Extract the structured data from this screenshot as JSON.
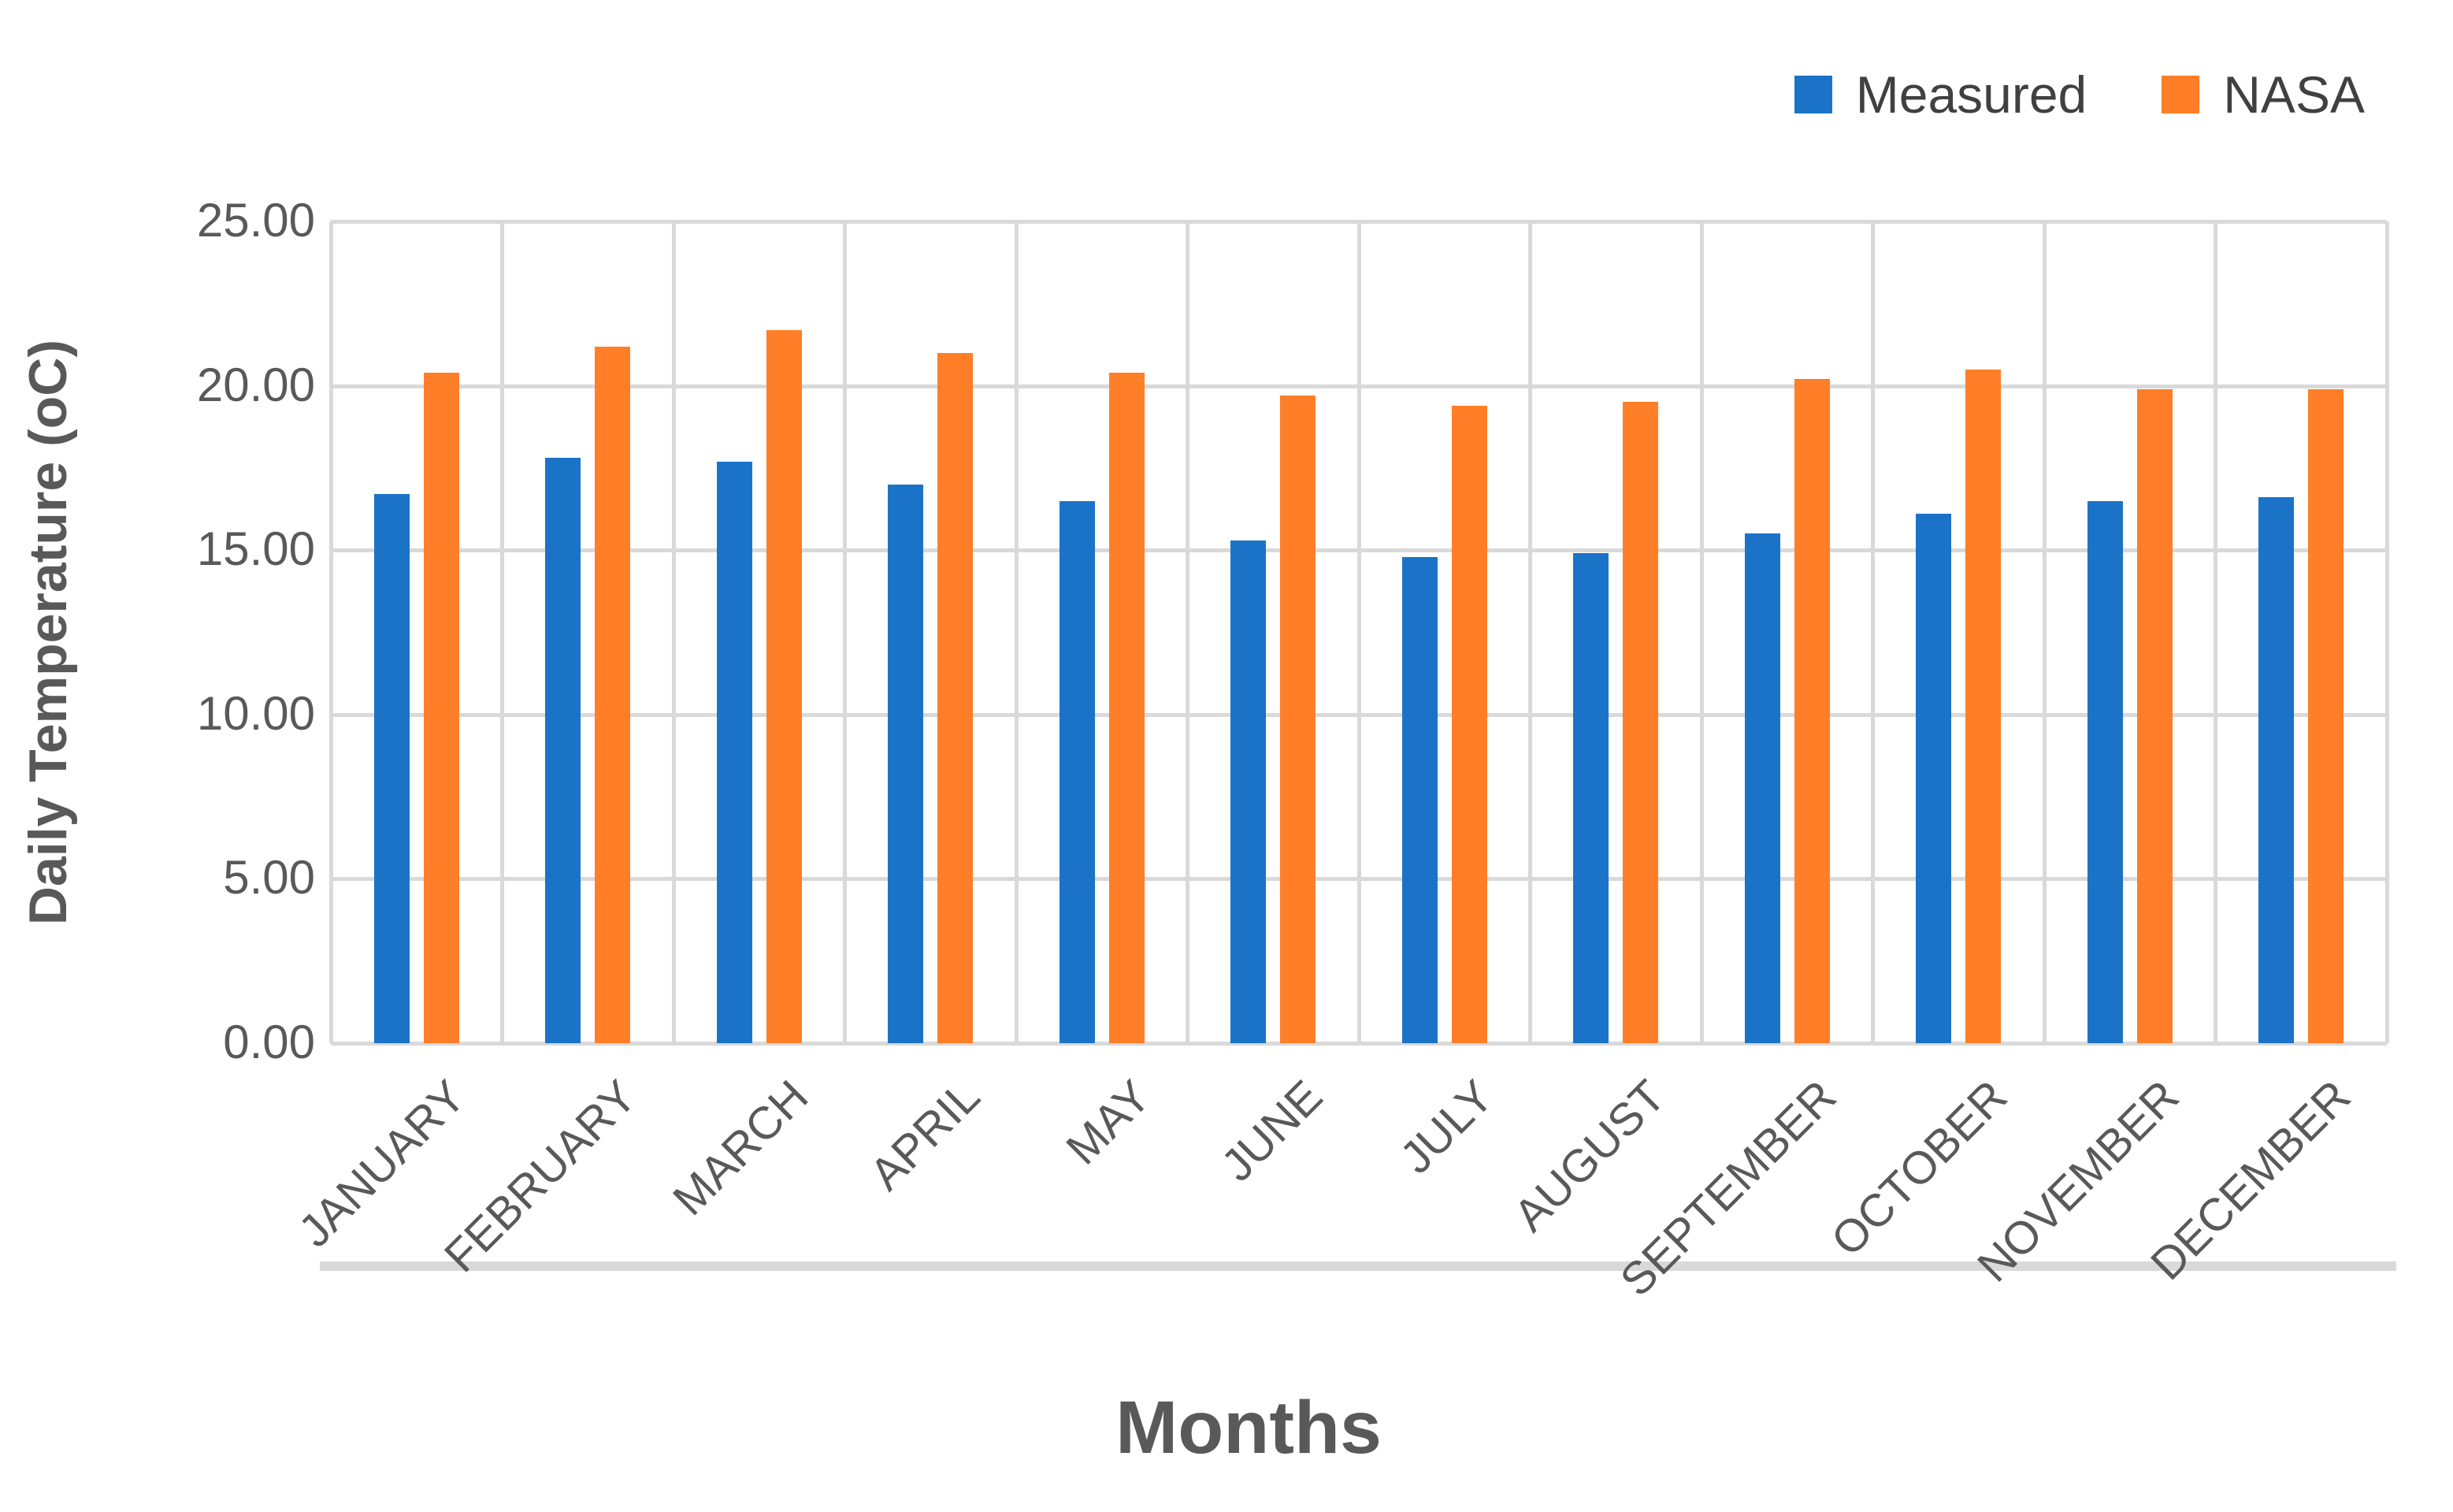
{
  "chart_data": {
    "type": "bar",
    "title": "",
    "categories": [
      "JANUARY",
      "FEBRUARY",
      "MARCH",
      "APRIL",
      "MAY",
      "JUNE",
      "JULY",
      "AUGUST",
      "SEPTEMBER",
      "OCTOBER",
      "NOVEMBER",
      "DECEMBER"
    ],
    "series": [
      {
        "name": "Measured",
        "color": "#1b73c7",
        "values": [
          16.7,
          17.8,
          17.7,
          17.0,
          16.5,
          15.3,
          14.8,
          14.9,
          15.5,
          16.1,
          16.5,
          16.6
        ]
      },
      {
        "name": "NASA",
        "color": "#ff7e27",
        "values": [
          20.4,
          21.2,
          21.7,
          21.0,
          20.4,
          19.7,
          19.4,
          19.5,
          20.2,
          20.5,
          19.9,
          19.9
        ]
      }
    ],
    "xlabel": "Months",
    "ylabel": "Daily Temperature (oC)",
    "ylim": [
      0,
      25
    ],
    "ytick_step": 5,
    "yticks": [
      "0.00",
      "5.00",
      "10.00",
      "15.00",
      "20.00",
      "25.00"
    ],
    "grid": true,
    "legend_position": "top-right"
  },
  "ui_colors": {
    "gridline": "#d9d9d9",
    "axis_line": "#d9d9d9",
    "tick_text": "#595959",
    "axis_title_text": "#595959",
    "legend_text": "#404040",
    "background": "#ffffff"
  }
}
